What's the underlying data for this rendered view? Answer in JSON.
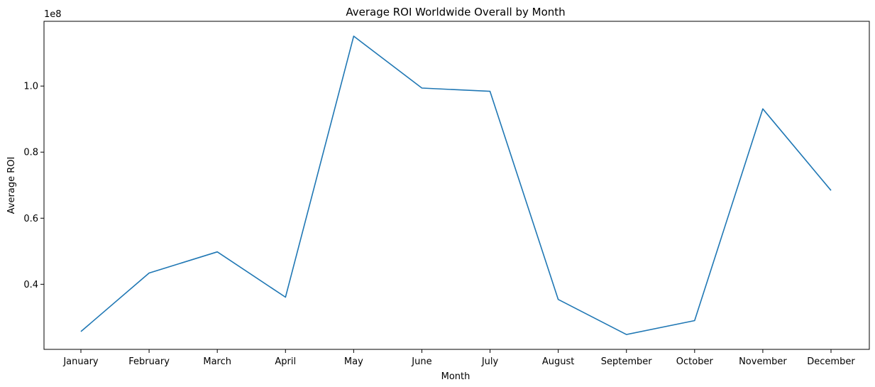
{
  "chart_data": {
    "type": "line",
    "title": "Average ROI Worldwide Overall by Month",
    "xlabel": "Month",
    "ylabel": "Average ROI",
    "y_offset_label": "1e8",
    "categories": [
      "January",
      "February",
      "March",
      "April",
      "May",
      "June",
      "July",
      "August",
      "September",
      "October",
      "November",
      "December"
    ],
    "series": [
      {
        "values": [
          25700000,
          43400000,
          49800000,
          36100000,
          115100000,
          99400000,
          98400000,
          35400000,
          24800000,
          29000000,
          93100000,
          68400000
        ]
      }
    ],
    "y_ticks": [
      {
        "value": 40000000,
        "label": "0.4"
      },
      {
        "value": 60000000,
        "label": "0.6"
      },
      {
        "value": 80000000,
        "label": "0.8"
      },
      {
        "value": 100000000,
        "label": "1.0"
      }
    ],
    "ylim": [
      20300000,
      119600000
    ],
    "grid": false,
    "line_color": "#1f77b4"
  }
}
